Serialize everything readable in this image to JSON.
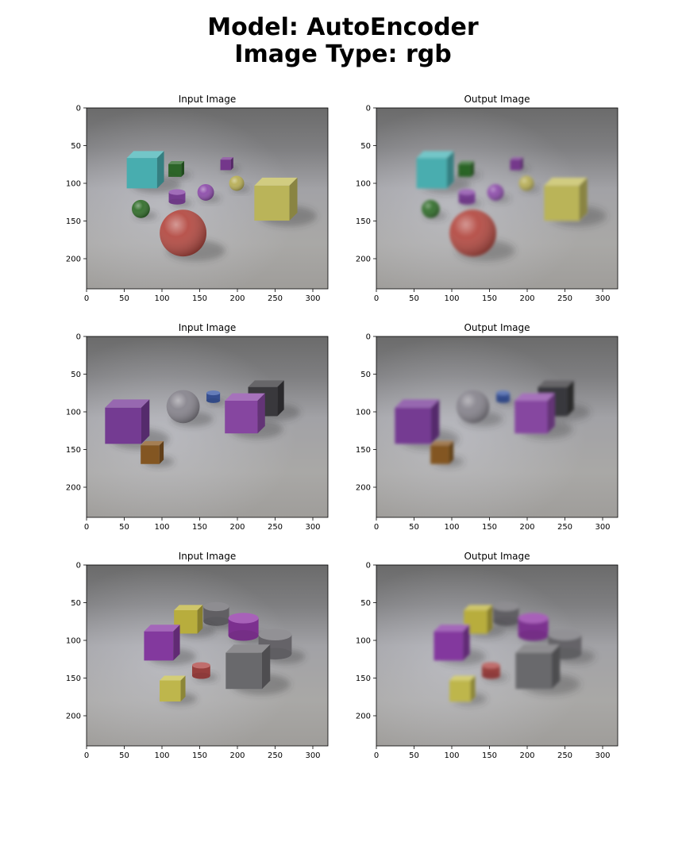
{
  "figure": {
    "title_line1": "Model: AutoEncoder",
    "title_line2": "Image Type: rgb"
  },
  "chart_data": [
    {
      "type": "image",
      "title": "Input Image",
      "xticks": [
        0,
        50,
        100,
        150,
        200,
        250,
        300
      ],
      "yticks": [
        0,
        50,
        100,
        150,
        200
      ],
      "xlim": [
        0,
        320
      ],
      "ylim": [
        240,
        0
      ],
      "scene": "clevr-1",
      "blur": false
    },
    {
      "type": "image",
      "title": "Output Image",
      "xticks": [
        0,
        50,
        100,
        150,
        200,
        250,
        300
      ],
      "yticks": [
        0,
        50,
        100,
        150,
        200
      ],
      "xlim": [
        0,
        320
      ],
      "ylim": [
        240,
        0
      ],
      "scene": "clevr-1",
      "blur": true
    },
    {
      "type": "image",
      "title": "Input Image",
      "xticks": [
        0,
        50,
        100,
        150,
        200,
        250,
        300
      ],
      "yticks": [
        0,
        50,
        100,
        150,
        200
      ],
      "xlim": [
        0,
        320
      ],
      "ylim": [
        240,
        0
      ],
      "scene": "clevr-2",
      "blur": false
    },
    {
      "type": "image",
      "title": "Output Image",
      "xticks": [
        0,
        50,
        100,
        150,
        200,
        250,
        300
      ],
      "yticks": [
        0,
        50,
        100,
        150,
        200
      ],
      "xlim": [
        0,
        320
      ],
      "ylim": [
        240,
        0
      ],
      "scene": "clevr-2",
      "blur": true
    },
    {
      "type": "image",
      "title": "Input Image",
      "xticks": [
        0,
        50,
        100,
        150,
        200,
        250,
        300
      ],
      "yticks": [
        0,
        50,
        100,
        150,
        200
      ],
      "xlim": [
        0,
        320
      ],
      "ylim": [
        240,
        0
      ],
      "scene": "clevr-3",
      "blur": false
    },
    {
      "type": "image",
      "title": "Output Image",
      "xticks": [
        0,
        50,
        100,
        150,
        200,
        250,
        300
      ],
      "yticks": [
        0,
        50,
        100,
        150,
        200
      ],
      "xlim": [
        0,
        320
      ],
      "ylim": [
        240,
        0
      ],
      "scene": "clevr-3",
      "blur": true
    }
  ],
  "scenes": {
    "clevr-1": [
      {
        "kind": "cube",
        "x": 78,
        "y": 82,
        "s": 26,
        "color": "#4cb6b8"
      },
      {
        "kind": "cube",
        "x": 119,
        "y": 81,
        "s": 11,
        "color": "#2e6a2a"
      },
      {
        "kind": "cube",
        "x": 186,
        "y": 74,
        "s": 9,
        "color": "#7a3a92"
      },
      {
        "kind": "cylinder",
        "x": 120,
        "y": 118,
        "s": 11,
        "color": "#8a48a8"
      },
      {
        "kind": "sphere",
        "x": 158,
        "y": 112,
        "s": 11,
        "color": "#8a48a8"
      },
      {
        "kind": "sphere",
        "x": 199,
        "y": 100,
        "s": 10,
        "color": "#b6ac52"
      },
      {
        "kind": "cube",
        "x": 251,
        "y": 121,
        "s": 30,
        "color": "#c4bd5e"
      },
      {
        "kind": "sphere",
        "x": 72,
        "y": 134,
        "s": 12,
        "color": "#2c6a25"
      },
      {
        "kind": "sphere",
        "x": 128,
        "y": 166,
        "s": 31,
        "color": "#b2463e"
      }
    ],
    "clevr-2": [
      {
        "kind": "cube",
        "x": 54,
        "y": 113,
        "s": 31,
        "color": "#7a3e9a"
      },
      {
        "kind": "sphere",
        "x": 128,
        "y": 93,
        "s": 22,
        "color": "#84818a"
      },
      {
        "kind": "cylinder",
        "x": 168,
        "y": 80,
        "s": 9,
        "color": "#3f5ca8"
      },
      {
        "kind": "cube",
        "x": 238,
        "y": 82,
        "s": 25,
        "color": "#3c3b3f"
      },
      {
        "kind": "cube",
        "x": 210,
        "y": 102,
        "s": 28,
        "color": "#8d4aa8"
      },
      {
        "kind": "cube",
        "x": 87,
        "y": 154,
        "s": 16,
        "color": "#8a5a24"
      }
    ],
    "clevr-3": [
      {
        "kind": "cube",
        "x": 135,
        "y": 72,
        "s": 20,
        "color": "#c2b640"
      },
      {
        "kind": "cylinder",
        "x": 172,
        "y": 65,
        "s": 17,
        "color": "#727075"
      },
      {
        "kind": "cylinder",
        "x": 208,
        "y": 82,
        "s": 20,
        "color": "#9239a8"
      },
      {
        "kind": "cylinder",
        "x": 250,
        "y": 105,
        "s": 22,
        "color": "#77757a"
      },
      {
        "kind": "cube",
        "x": 100,
        "y": 103,
        "s": 25,
        "color": "#8a3ca6"
      },
      {
        "kind": "cylinder",
        "x": 152,
        "y": 140,
        "s": 12,
        "color": "#b04a48"
      },
      {
        "kind": "cube",
        "x": 214,
        "y": 135,
        "s": 31,
        "color": "#6f6e72"
      },
      {
        "kind": "cube",
        "x": 114,
        "y": 164,
        "s": 18,
        "color": "#c8c050"
      }
    ]
  }
}
